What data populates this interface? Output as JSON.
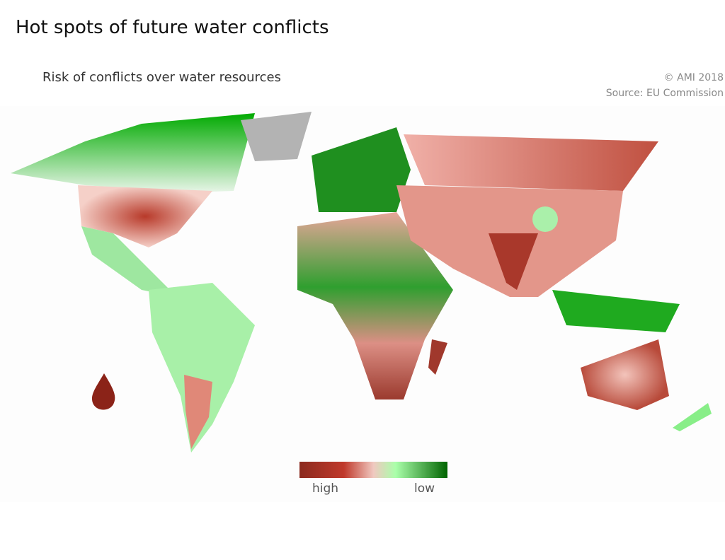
{
  "header": {
    "title": "Hot spots of future water conflicts",
    "subtitle": "Risk of conflicts over water resources"
  },
  "credits": {
    "copyright": "© AMI 2018",
    "source": "Source: EU Commission"
  },
  "legend": {
    "high": "high",
    "low": "low"
  }
}
